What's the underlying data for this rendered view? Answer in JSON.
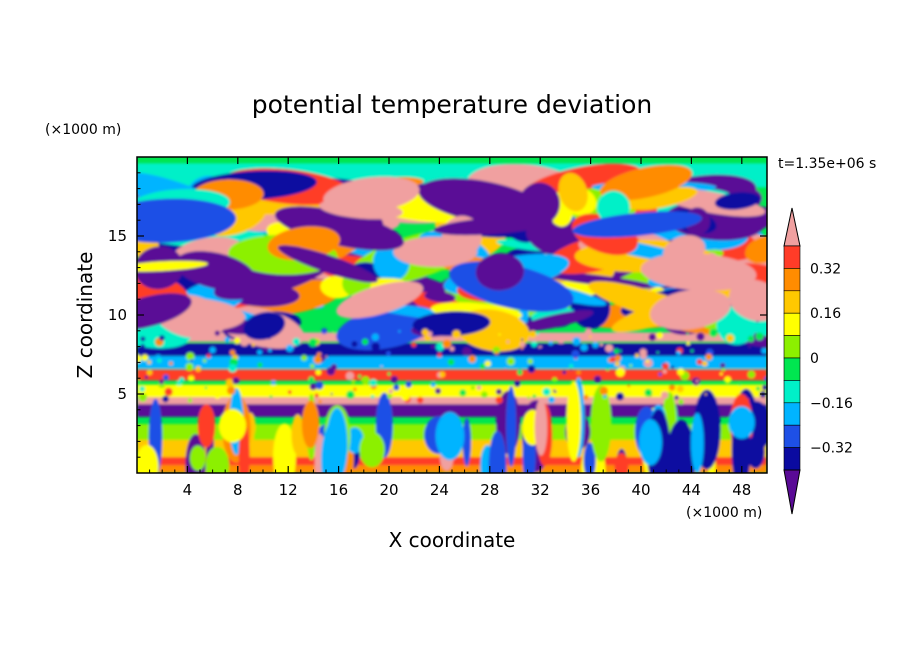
{
  "chart_data": {
    "type": "heatmap",
    "title": "potential temperature deviation",
    "xlabel": "X coordinate",
    "ylabel": "Z coordinate",
    "x_unit": "(×1000 m)",
    "y_unit": "(×1000 m)",
    "time_label": "t=1.35e+06 s",
    "xlim": [
      0,
      50
    ],
    "ylim": [
      0,
      20
    ],
    "x_ticks": [
      4,
      8,
      12,
      16,
      20,
      24,
      28,
      32,
      36,
      40,
      44,
      48
    ],
    "y_ticks": [
      5,
      10,
      15
    ],
    "colorbar": {
      "levels": [
        -0.4,
        -0.32,
        -0.24,
        -0.16,
        -0.08,
        0,
        0.08,
        0.16,
        0.24,
        0.32,
        0.4
      ],
      "tick_labels": [
        "0.32",
        "0.16",
        "0",
        "−0.16",
        "−0.32"
      ],
      "tick_values": [
        0.32,
        0.16,
        0,
        -0.16,
        -0.32
      ],
      "colors": [
        "#5a0a96",
        "#0a0aa0",
        "#1e50e6",
        "#00b4ff",
        "#00f0c8",
        "#00e650",
        "#8cf000",
        "#ffff00",
        "#ffc800",
        "#ff8c00",
        "#ff3c28",
        "#f0a0a0"
      ],
      "extend": "both"
    }
  }
}
